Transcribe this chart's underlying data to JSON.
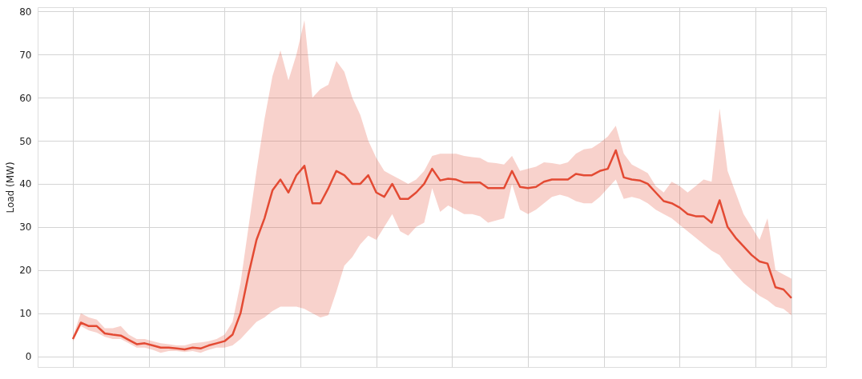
{
  "chart_data": {
    "type": "line",
    "ylabel": "Load (MW)",
    "categories": [
      null,
      null,
      null,
      null,
      null,
      null,
      null,
      null,
      null,
      null,
      null,
      null,
      null,
      null,
      null,
      null,
      null,
      null,
      null,
      null,
      null,
      null,
      null,
      null,
      null,
      null,
      null,
      null,
      null,
      null,
      null,
      null,
      null,
      null,
      null,
      null,
      null,
      null,
      null,
      null,
      null,
      null,
      null,
      null,
      null,
      null,
      null,
      null,
      null,
      null,
      null,
      null,
      null,
      null,
      null,
      null,
      null,
      null,
      null,
      null,
      null,
      null,
      null,
      null,
      null,
      null,
      null,
      null,
      null,
      null,
      null,
      null,
      null,
      null,
      null,
      null,
      null,
      null,
      null,
      null,
      null,
      null,
      null,
      null,
      null,
      null,
      null,
      null,
      null,
      null,
      null
    ],
    "series": [
      {
        "color": "#e34a33",
        "values": [
          4,
          7.8,
          7,
          7,
          5.3,
          5,
          4.8,
          3.8,
          2.8,
          3,
          2.5,
          2,
          2,
          1.8,
          1.6,
          2,
          1.8,
          2.5,
          3,
          3.5,
          5,
          10,
          19,
          27,
          32,
          38.5,
          41,
          38,
          42,
          44.2,
          35.5,
          35.5,
          39,
          43,
          42,
          40,
          40,
          42,
          38,
          37,
          40,
          36.5,
          36.5,
          38,
          40,
          43.5,
          40.8,
          41.2,
          41,
          40.3,
          40.3,
          40.3,
          39,
          39,
          39,
          43,
          39.3,
          39,
          39.3,
          40.5,
          41,
          41,
          41,
          42.3,
          42,
          42,
          43,
          43.5,
          47.8,
          41.5,
          41,
          40.8,
          40,
          38,
          36,
          35.5,
          34.5,
          33,
          32.5,
          32.5,
          31,
          36.2,
          30,
          27.5,
          25.5,
          23.5,
          22,
          21.5,
          16,
          15.5,
          13.5
        ],
        "upper": [
          4.5,
          10,
          9,
          8.5,
          6.5,
          6.5,
          7,
          5,
          4,
          4,
          3.5,
          3,
          2.8,
          2.5,
          2.5,
          3,
          3.2,
          3.5,
          4,
          5,
          8,
          17,
          30,
          43,
          55,
          65,
          71,
          64,
          70,
          78,
          60,
          62,
          63,
          68.5,
          66,
          60,
          56,
          50,
          46,
          43,
          42,
          41,
          40,
          41,
          43,
          46.5,
          47,
          47,
          47,
          46.5,
          46.2,
          46,
          45,
          44.8,
          44.5,
          46.5,
          43,
          43.5,
          44,
          45,
          44.8,
          44.5,
          45,
          47,
          48,
          48.3,
          49.5,
          51,
          53.5,
          47,
          44.5,
          43.5,
          42.5,
          39.5,
          38,
          40.5,
          39.5,
          38,
          39.5,
          41,
          40.5,
          57.5,
          43,
          38,
          33,
          30,
          27,
          32,
          20,
          19,
          18
        ],
        "lower": [
          3.5,
          7,
          6,
          5.5,
          4.5,
          4,
          4,
          3,
          2,
          2,
          1.5,
          0.8,
          1.2,
          1.2,
          1,
          1.2,
          0.8,
          1.5,
          2,
          2,
          2.5,
          4,
          6,
          8,
          9,
          10.5,
          11.5,
          11.5,
          11.5,
          11,
          10,
          9,
          9.5,
          15,
          21,
          23,
          26,
          28,
          27,
          30,
          33,
          29,
          28,
          30,
          31,
          39,
          33.5,
          35,
          34,
          33,
          33,
          32.5,
          31,
          31.5,
          32,
          40,
          34,
          33,
          34,
          35.5,
          37,
          37.5,
          37,
          36,
          35.5,
          35.5,
          37,
          39,
          41,
          36.5,
          37,
          36.5,
          35.5,
          34,
          33,
          32,
          30.5,
          29,
          27.5,
          26,
          24.5,
          23.5,
          21,
          19,
          17,
          15.5,
          14,
          13,
          11.5,
          11,
          9.5
        ]
      }
    ],
    "ylim": [
      -2.5,
      81
    ],
    "yticks": [
      0,
      10,
      20,
      30,
      40,
      50,
      60,
      70,
      80
    ],
    "grid": true,
    "tick_labels": "y",
    "line_style": "solid"
  }
}
